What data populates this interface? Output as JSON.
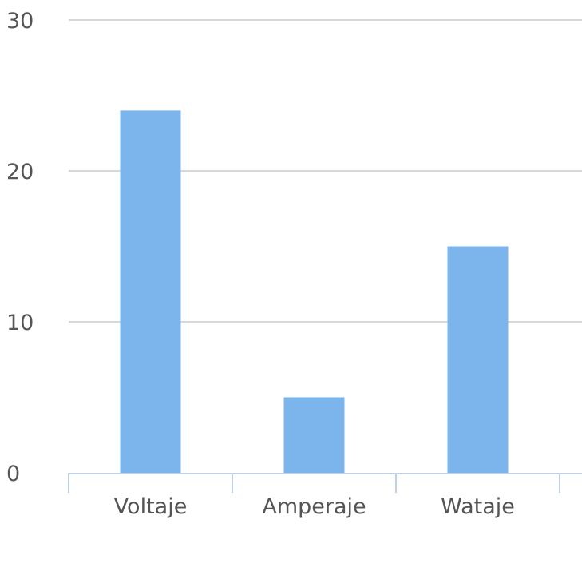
{
  "chart_data": {
    "type": "bar",
    "categories": [
      "Voltaje",
      "Amperaje",
      "Wataje"
    ],
    "values": [
      24,
      5,
      15
    ],
    "ylim": [
      0,
      30
    ],
    "yticks": [
      0,
      10,
      20,
      30
    ],
    "title": "",
    "xlabel": "",
    "ylabel": "",
    "grid": true,
    "legend": "none",
    "colors": {
      "bar": "#7cb5ec",
      "grid": "#d8d8d8",
      "axis": "#c0d0e0",
      "text": "#555555"
    }
  }
}
